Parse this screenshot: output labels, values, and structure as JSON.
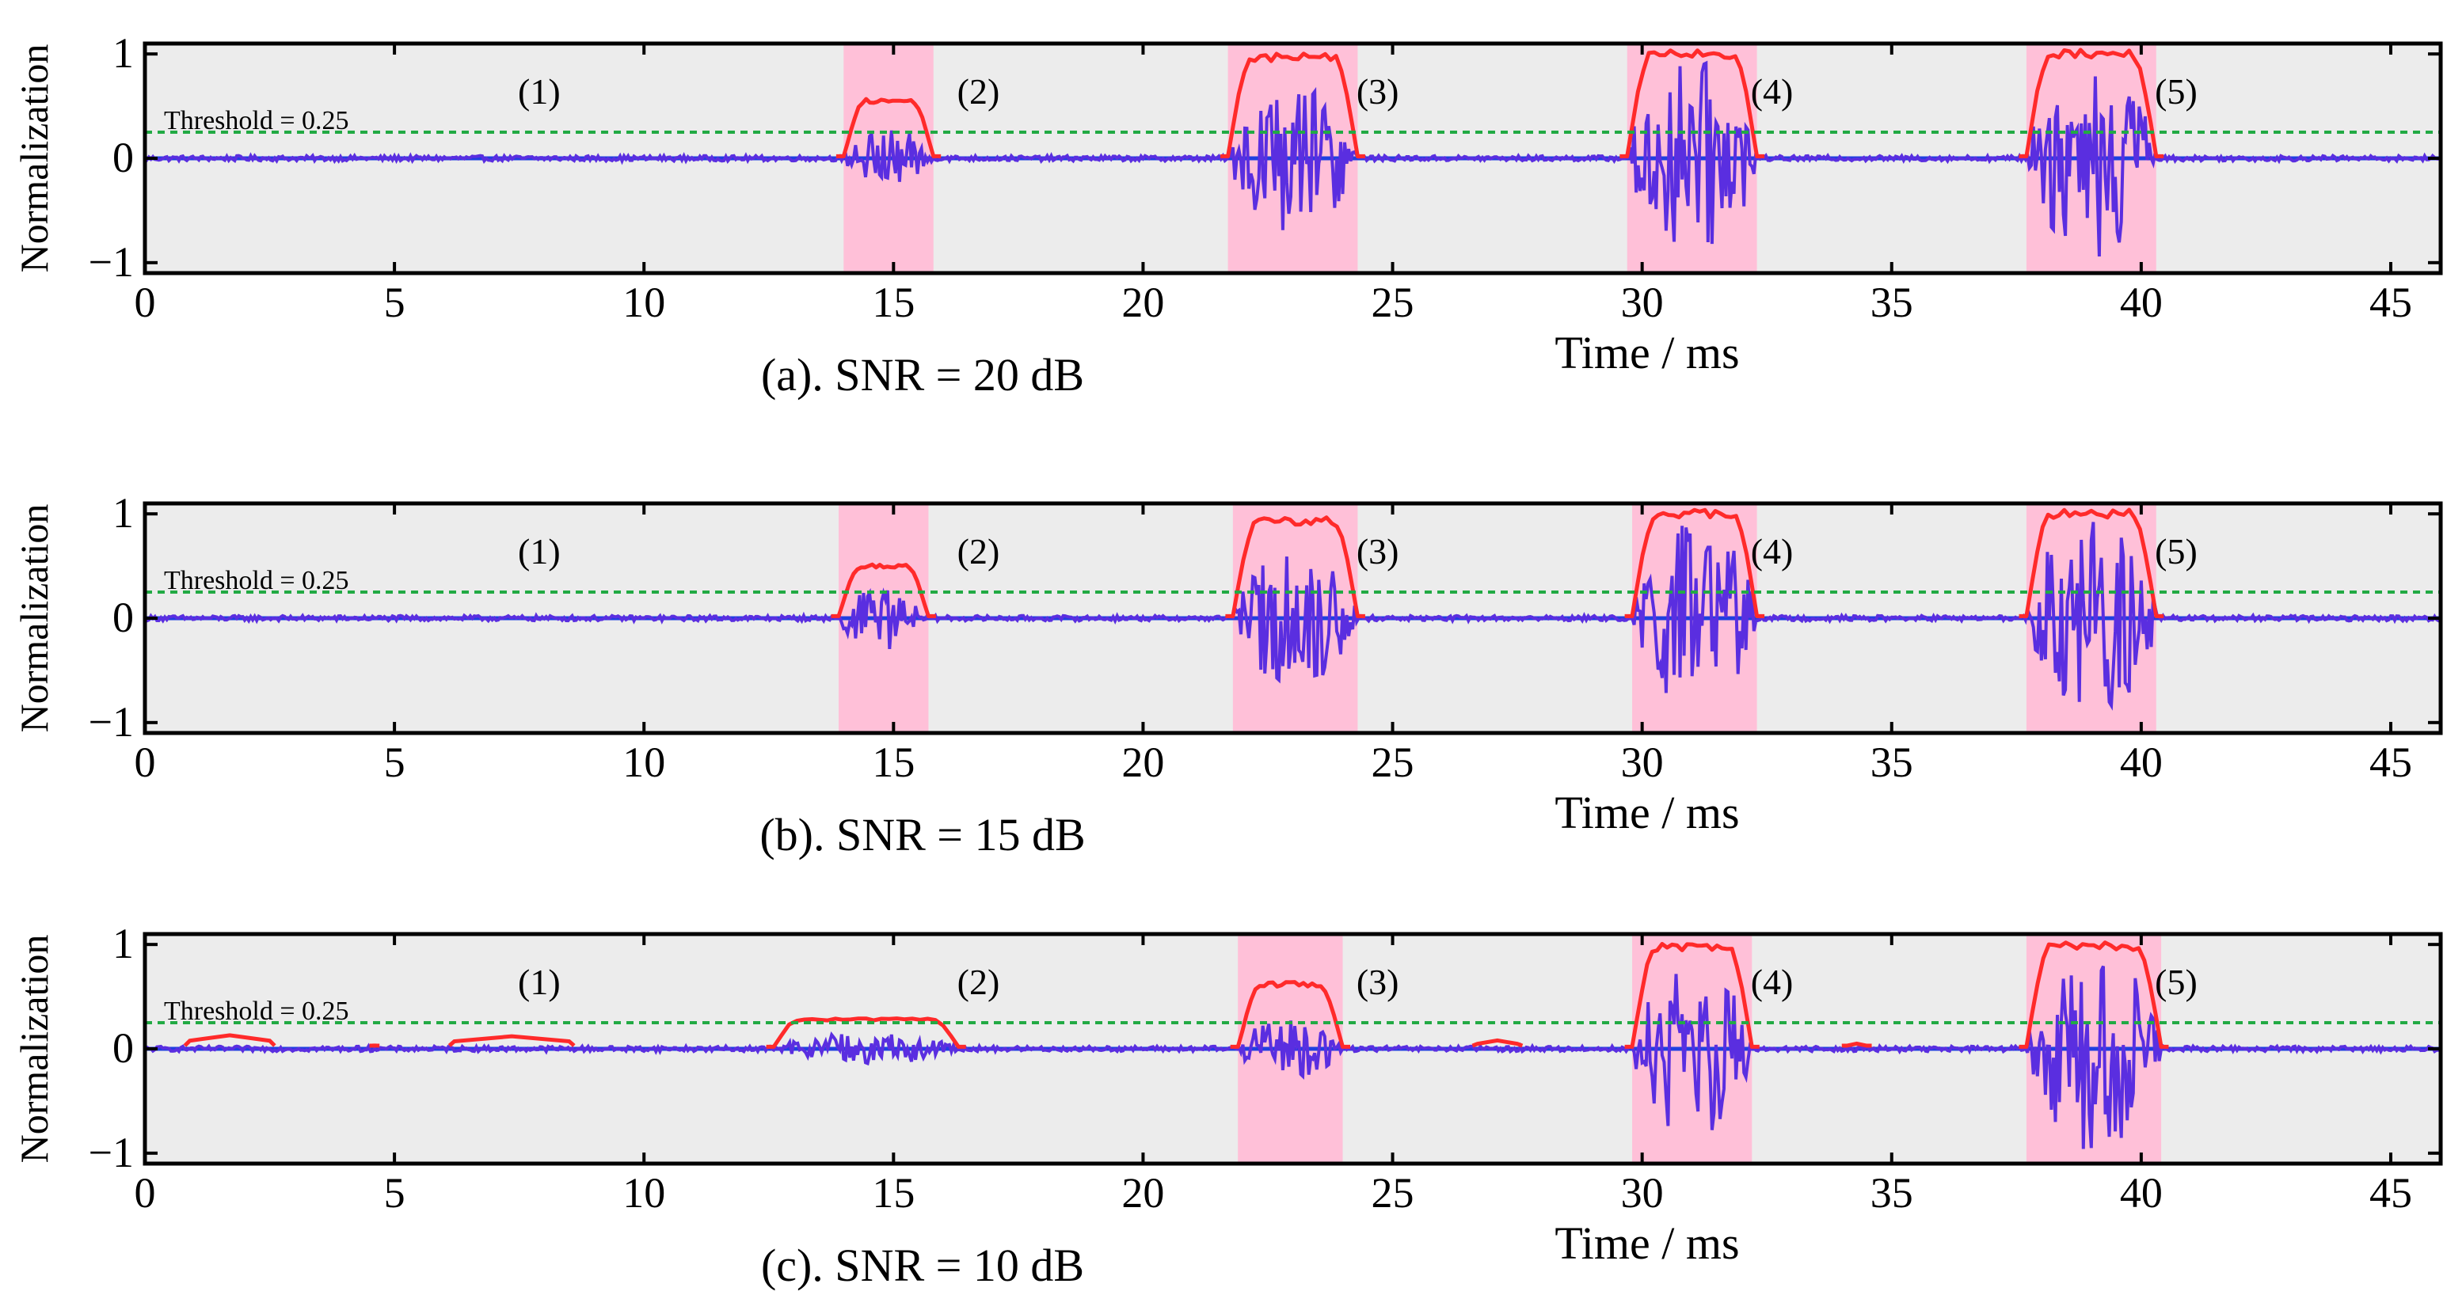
{
  "chart_data": [
    {
      "type": "line",
      "caption": "(a). SNR = 20 dB",
      "xlabel": "Time / ms",
      "ylabel": "Normalization",
      "xlim": [
        0,
        46
      ],
      "ylim": [
        -1.1,
        1.1
      ],
      "xticks": [
        0,
        5,
        10,
        15,
        20,
        25,
        30,
        35,
        40,
        45
      ],
      "yticks": [
        -1,
        0,
        1
      ],
      "grid": false,
      "threshold": {
        "value": 0.25,
        "label": "Threshold = 0.25",
        "color": "#22aa44"
      },
      "colors": {
        "envelope": "#ff2a2a",
        "signal": "#5a2ee0",
        "baseline": "#1f3fe0",
        "highlight": "#ffc0d8",
        "background": "#ececec"
      },
      "segments": [
        {
          "label": "(1)",
          "label_x": 7.9,
          "highlighted": false
        },
        {
          "label": "(2)",
          "label_x": 16.7,
          "start": 14.0,
          "end": 15.8,
          "peak_envelope": 0.55,
          "signal_amplitude": 0.28,
          "highlighted": true
        },
        {
          "label": "(3)",
          "label_x": 24.7,
          "start": 21.7,
          "end": 24.3,
          "peak_envelope": 0.97,
          "signal_amplitude": 0.7,
          "highlighted": true
        },
        {
          "label": "(4)",
          "label_x": 32.6,
          "start": 29.7,
          "end": 32.3,
          "peak_envelope": 1.0,
          "signal_amplitude": 0.95,
          "highlighted": true
        },
        {
          "label": "(5)",
          "label_x": 40.7,
          "start": 37.7,
          "end": 40.3,
          "peak_envelope": 1.0,
          "signal_amplitude": 1.0,
          "highlighted": true
        }
      ],
      "noise_blips": []
    },
    {
      "type": "line",
      "caption": "(b). SNR = 15 dB",
      "xlabel": "Time / ms",
      "ylabel": "Normalization",
      "xlim": [
        0,
        46
      ],
      "ylim": [
        -1.1,
        1.1
      ],
      "xticks": [
        0,
        5,
        10,
        15,
        20,
        25,
        30,
        35,
        40,
        45
      ],
      "yticks": [
        -1,
        0,
        1
      ],
      "grid": false,
      "threshold": {
        "value": 0.25,
        "label": "Threshold = 0.25",
        "color": "#22aa44"
      },
      "colors": {
        "envelope": "#ff2a2a",
        "signal": "#5a2ee0",
        "baseline": "#1f3fe0",
        "highlight": "#ffc0d8",
        "background": "#ececec"
      },
      "segments": [
        {
          "label": "(1)",
          "label_x": 7.9,
          "highlighted": false
        },
        {
          "label": "(2)",
          "label_x": 16.7,
          "start": 13.9,
          "end": 15.7,
          "peak_envelope": 0.5,
          "signal_amplitude": 0.3,
          "highlighted": true
        },
        {
          "label": "(3)",
          "label_x": 24.7,
          "start": 21.8,
          "end": 24.3,
          "peak_envelope": 0.93,
          "signal_amplitude": 0.65,
          "highlighted": true
        },
        {
          "label": "(4)",
          "label_x": 32.6,
          "start": 29.8,
          "end": 32.3,
          "peak_envelope": 1.0,
          "signal_amplitude": 0.95,
          "highlighted": true
        },
        {
          "label": "(5)",
          "label_x": 40.7,
          "start": 37.7,
          "end": 40.3,
          "peak_envelope": 1.0,
          "signal_amplitude": 1.0,
          "highlighted": true
        }
      ],
      "noise_blips": []
    },
    {
      "type": "line",
      "caption": "(c). SNR = 10 dB",
      "xlabel": "Time / ms",
      "ylabel": "Normalization",
      "xlim": [
        0,
        46
      ],
      "ylim": [
        -1.1,
        1.1
      ],
      "xticks": [
        0,
        5,
        10,
        15,
        20,
        25,
        30,
        35,
        40,
        45
      ],
      "yticks": [
        -1,
        0,
        1
      ],
      "grid": false,
      "threshold": {
        "value": 0.25,
        "label": "Threshold = 0.25",
        "color": "#22aa44"
      },
      "colors": {
        "envelope": "#ff2a2a",
        "signal": "#5a2ee0",
        "baseline": "#1f3fe0",
        "highlight": "#ffc0d8",
        "background": "#ececec"
      },
      "segments": [
        {
          "label": "(1)",
          "label_x": 7.9,
          "highlighted": false
        },
        {
          "label": "(2)",
          "label_x": 16.7,
          "start": 12.6,
          "end": 16.3,
          "peak_envelope": 0.28,
          "signal_amplitude": 0.15,
          "highlighted": false
        },
        {
          "label": "(3)",
          "label_x": 24.7,
          "start": 21.9,
          "end": 24.0,
          "peak_envelope": 0.62,
          "signal_amplitude": 0.3,
          "highlighted": true
        },
        {
          "label": "(4)",
          "label_x": 32.6,
          "start": 29.8,
          "end": 32.2,
          "peak_envelope": 0.98,
          "signal_amplitude": 0.85,
          "highlighted": true
        },
        {
          "label": "(5)",
          "label_x": 40.7,
          "start": 37.7,
          "end": 40.4,
          "peak_envelope": 0.98,
          "signal_amplitude": 1.0,
          "highlighted": true
        }
      ],
      "noise_blips": [
        {
          "start": 0.8,
          "end": 2.6,
          "peak": 0.13
        },
        {
          "start": 4.5,
          "end": 4.7,
          "peak": 0.05
        },
        {
          "start": 6.1,
          "end": 8.6,
          "peak": 0.12
        },
        {
          "start": 26.6,
          "end": 27.6,
          "peak": 0.08
        },
        {
          "start": 34.0,
          "end": 34.6,
          "peak": 0.05
        }
      ]
    }
  ]
}
